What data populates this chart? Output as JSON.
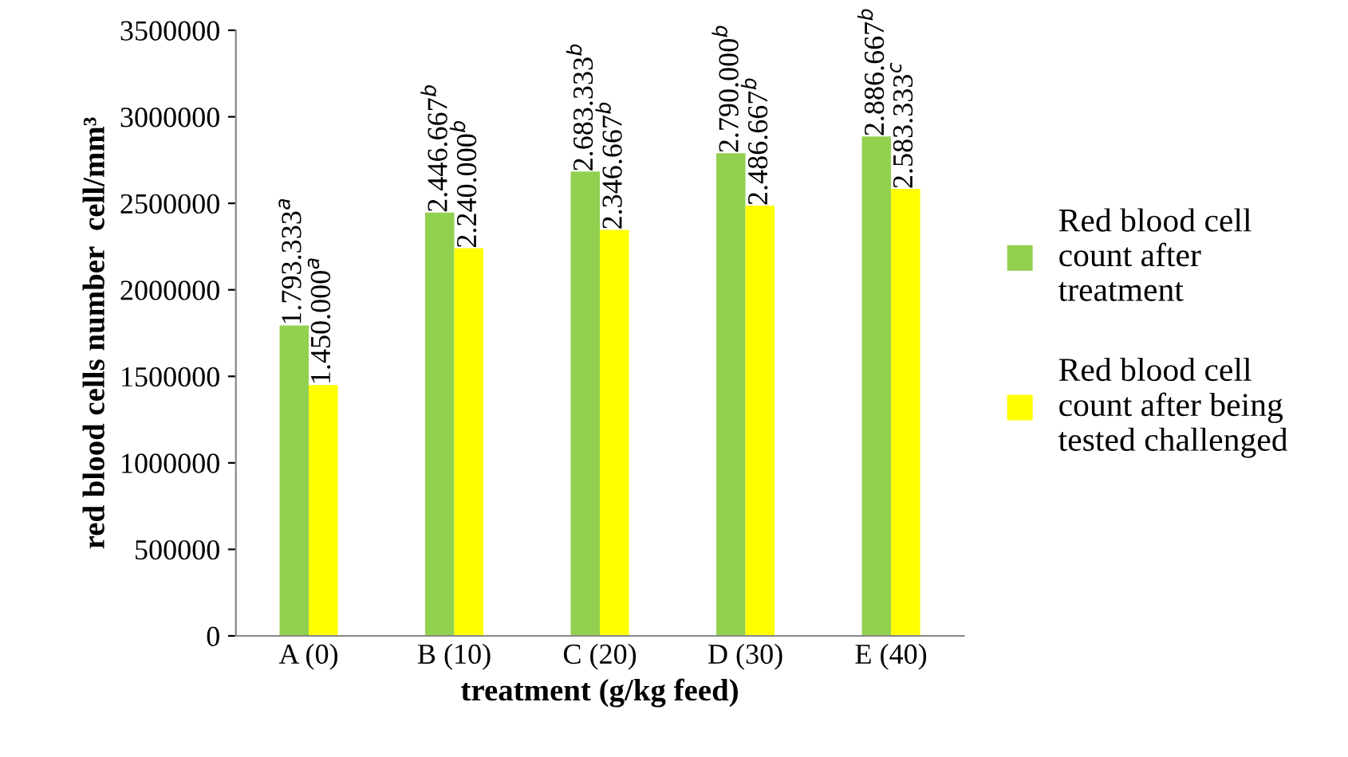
{
  "chart_data": {
    "type": "bar",
    "xlabel": "treatment (g/kg feed)",
    "ylabel": "red blood cells number  cell/mm³",
    "categories": [
      "A (0)",
      "B (10)",
      "C (20)",
      "D (30)",
      "E (40)"
    ],
    "series": [
      {
        "name": "Red blood cell count after treatment",
        "color": "#92d050",
        "values": [
          1793333,
          2446667,
          2683333,
          2790000,
          2886667
        ],
        "value_labels": [
          "1.793.333$^{a}$",
          "2.446.667$^{b}$",
          "2.683.333$^{b}$",
          "2.790.000$^{b}$",
          "2.886.667$^{b}$"
        ]
      },
      {
        "name": "Red blood cell count after being tested challenged",
        "color": "#ffff00",
        "values": [
          1450000,
          2240000,
          2346667,
          2486667,
          2583333
        ],
        "value_labels": [
          "1.450.000$^{a}$",
          "2.240.000$^{b}$",
          "2.346.667$^{b}$",
          "2.486.667$^{b}$",
          "2.583.333$^{c}$"
        ]
      }
    ],
    "ylim": [
      0,
      3500000
    ],
    "yticks": [
      0,
      500000,
      1000000,
      1500000,
      2000000,
      2500000,
      3000000,
      3500000
    ],
    "grid": false,
    "legend": "right"
  }
}
